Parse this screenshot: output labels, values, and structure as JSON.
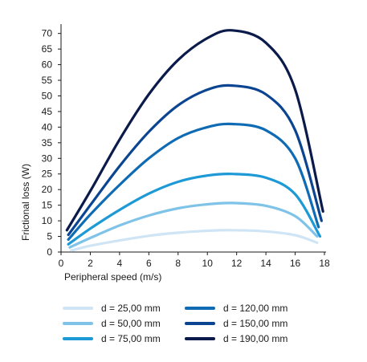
{
  "chart_data": {
    "type": "line",
    "xlabel": "Peripheral speed  (m/s)",
    "ylabel": "Frictional loss  (W)",
    "xlim": [
      0,
      18
    ],
    "ylim": [
      0,
      73
    ],
    "xticks": [
      0,
      2,
      4,
      6,
      8,
      10,
      12,
      14,
      16,
      18
    ],
    "yticks": [
      0,
      5,
      10,
      15,
      20,
      25,
      30,
      35,
      40,
      45,
      50,
      55,
      60,
      65,
      70
    ],
    "grid": false,
    "legend_position": "bottom",
    "series": [
      {
        "name": "d = 25,00 mm",
        "color": "#cfe5f5",
        "x": [
          0.7,
          2,
          4,
          6,
          8,
          10,
          11.7,
          14,
          16,
          17.5
        ],
        "y": [
          0.5,
          2.0,
          3.7,
          5.2,
          6.2,
          6.8,
          7.0,
          6.6,
          5.4,
          3.0
        ]
      },
      {
        "name": "d = 50,00 mm",
        "color": "#7fc3e8",
        "x": [
          0.6,
          2,
          4,
          6,
          8,
          10,
          11.7,
          14,
          16,
          17.5
        ],
        "y": [
          1.5,
          4.5,
          8.5,
          11.7,
          14.0,
          15.3,
          15.7,
          14.8,
          11.5,
          5.0
        ]
      },
      {
        "name": "d = 75,00 mm",
        "color": "#1d9ad6",
        "x": [
          0.5,
          2,
          4,
          6,
          8,
          10,
          11.7,
          14,
          16,
          17.7
        ],
        "y": [
          2.5,
          7.5,
          13.5,
          18.7,
          22.5,
          24.5,
          25.0,
          23.8,
          18.5,
          5.0
        ]
      },
      {
        "name": "d = 120,00 mm",
        "color": "#0f6bb3",
        "x": [
          0.5,
          2,
          4,
          6,
          8,
          10,
          11.7,
          14,
          16,
          17.6
        ],
        "y": [
          4.0,
          12.0,
          21.5,
          30.0,
          36.5,
          40.0,
          41.0,
          39.0,
          30.0,
          8.0
        ]
      },
      {
        "name": "d = 150,00 mm",
        "color": "#0b4592",
        "x": [
          0.5,
          2,
          4,
          6,
          8,
          10,
          11.7,
          14,
          16,
          17.8
        ],
        "y": [
          5.5,
          15.0,
          27.5,
          38.5,
          47.0,
          52.0,
          53.3,
          50.5,
          39.0,
          10.0
        ]
      },
      {
        "name": "d = 190,00 mm",
        "color": "#0a1a4a",
        "x": [
          0.4,
          2,
          4,
          6,
          8,
          10,
          11.7,
          14,
          16,
          17.9
        ],
        "y": [
          7.0,
          19.5,
          36.0,
          50.5,
          61.5,
          68.5,
          71.0,
          67.0,
          52.0,
          13.0
        ]
      }
    ]
  }
}
